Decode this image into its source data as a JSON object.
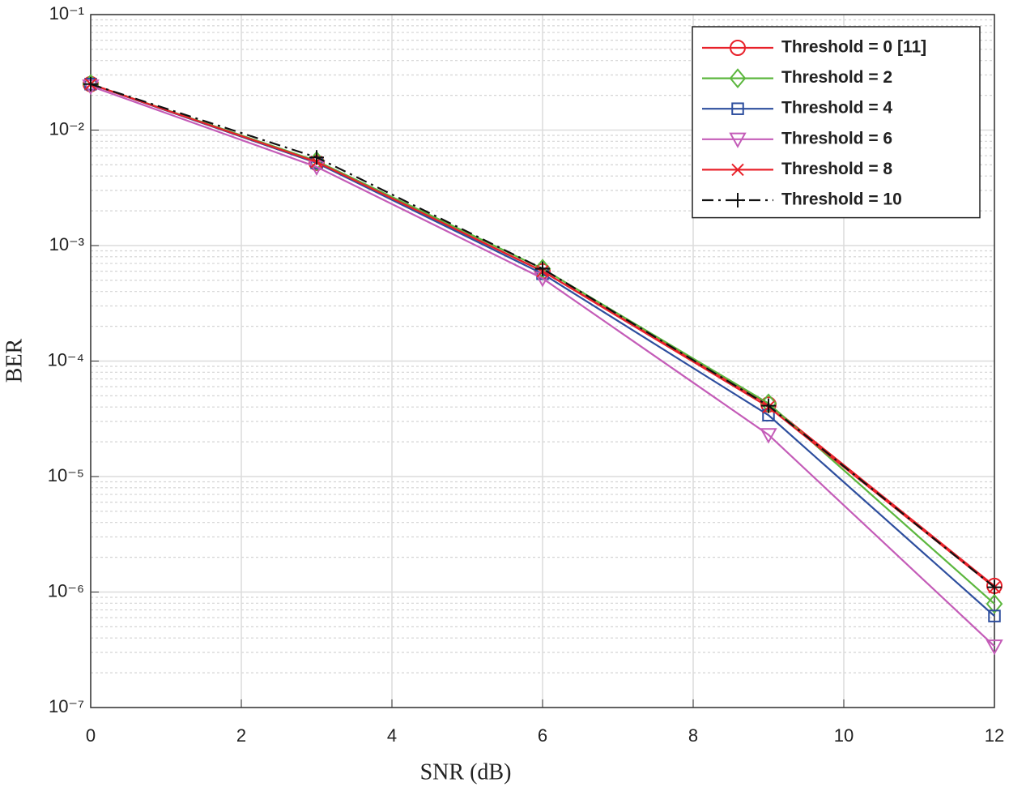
{
  "chart_data": {
    "type": "line",
    "xlabel": "SNR (dB)",
    "ylabel": "BER",
    "x": [
      0,
      3,
      6,
      9,
      12
    ],
    "xlim": [
      0,
      12
    ],
    "xticks": [
      0,
      2,
      4,
      6,
      8,
      10,
      12
    ],
    "ylim": [
      1e-07,
      0.1
    ],
    "log_y": true,
    "yticks": [
      {
        "value": 1e-07,
        "label": "10⁻⁷"
      },
      {
        "value": 1e-06,
        "label": "10⁻⁶"
      },
      {
        "value": 1e-05,
        "label": "10⁻⁵"
      },
      {
        "value": 0.0001,
        "label": "10⁻⁴"
      },
      {
        "value": 0.001,
        "label": "10⁻³"
      },
      {
        "value": 0.01,
        "label": "10⁻²"
      },
      {
        "value": 0.1,
        "label": "10⁻¹"
      }
    ],
    "grid": true,
    "legend": "upper right",
    "series": [
      {
        "name": "Threshold = 0 [11]",
        "color": "#e8212a",
        "marker": "circle",
        "dash": "solid",
        "values": [
          0.025,
          0.0052,
          0.0006,
          4.2e-05,
          1.13e-06
        ]
      },
      {
        "name": "Threshold = 2",
        "color": "#5cb73e",
        "marker": "diamond",
        "dash": "solid",
        "values": [
          0.025,
          0.0054,
          0.00063,
          4.3e-05,
          7.9e-07
        ]
      },
      {
        "name": "Threshold = 4",
        "color": "#2d4e9e",
        "marker": "square",
        "dash": "solid",
        "values": [
          0.025,
          0.0052,
          0.00057,
          3.4e-05,
          6.2e-07
        ]
      },
      {
        "name": "Threshold = 6",
        "color": "#c45cb8",
        "marker": "triangle-down",
        "dash": "solid",
        "values": [
          0.024,
          0.0048,
          0.00052,
          2.3e-05,
          3.4e-07
        ]
      },
      {
        "name": "Threshold = 8",
        "color": "#e8212a",
        "marker": "x",
        "dash": "solid",
        "values": [
          0.025,
          0.0053,
          0.0006,
          4e-05,
          1.1e-06
        ]
      },
      {
        "name": "Threshold = 10",
        "color": "#111111",
        "marker": "plus",
        "dash": "dashdot",
        "values": [
          0.025,
          0.0058,
          0.00063,
          4.1e-05,
          1.1e-06
        ]
      }
    ]
  }
}
